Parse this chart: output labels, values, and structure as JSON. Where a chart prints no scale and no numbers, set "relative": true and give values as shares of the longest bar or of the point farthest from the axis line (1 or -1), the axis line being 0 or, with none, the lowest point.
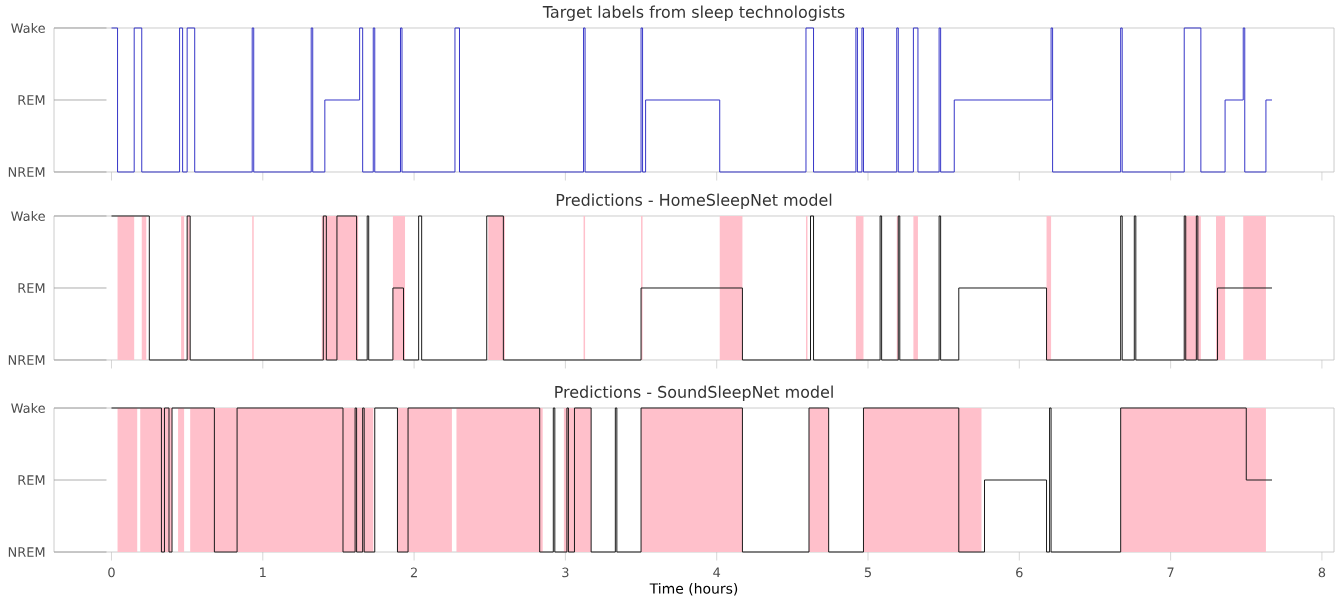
{
  "chart_data": [
    {
      "type": "step",
      "title": "Target labels from sleep technologists",
      "color": "#3535c8",
      "tick_labels": "y",
      "relative": true,
      "annotations": [
        "NREM",
        "REM",
        "Wake"
      ],
      "x": [
        0,
        0.04,
        0.15,
        0.2,
        0.45,
        0.47,
        0.5,
        0.55,
        0.93,
        0.94,
        1.32,
        1.33,
        1.41,
        1.64,
        1.66,
        1.73,
        1.74,
        1.91,
        1.92,
        2.27,
        2.3,
        3.12,
        3.13,
        3.5,
        3.51,
        3.53,
        4.02,
        4.59,
        4.64,
        4.92,
        4.93,
        4.96,
        4.97,
        5.19,
        5.2,
        5.3,
        5.33,
        5.47,
        5.48,
        5.57,
        6.21,
        6.22,
        6.67,
        6.68,
        7.09,
        7.2,
        7.36,
        7.48,
        7.49,
        7.63,
        7.67
      ],
      "values": [
        1,
        0,
        1,
        0,
        1,
        0,
        1,
        0,
        1,
        0,
        1,
        0,
        0.5,
        1,
        0,
        1,
        0,
        1,
        0,
        1,
        0,
        1,
        0,
        1,
        0,
        0.5,
        0,
        1,
        0,
        1,
        0,
        1,
        0,
        1,
        0,
        1,
        0,
        1,
        0,
        0.5,
        1,
        0,
        1,
        0,
        1,
        0,
        0.5,
        1,
        0,
        0.5,
        0.5
      ],
      "xlim": [
        -0.38,
        8.08
      ],
      "xticks": [
        {
          "value": 0,
          "label": null
        },
        {
          "value": 1,
          "label": null
        },
        {
          "value": 2,
          "label": null
        },
        {
          "value": 3,
          "label": null
        },
        {
          "value": 4,
          "label": null
        },
        {
          "value": 5,
          "label": null
        },
        {
          "value": 6,
          "label": null
        },
        {
          "value": 7,
          "label": null
        },
        {
          "value": 8,
          "label": null
        }
      ]
    },
    {
      "type": "step",
      "title": "Predictions - HomeSleepNet model",
      "color": "#1a1a1a",
      "tick_labels": "y",
      "relative": true,
      "annotations": [
        "NREM",
        "REM",
        "Wake"
      ],
      "x": [
        0,
        0.25,
        0.5,
        0.52,
        1.4,
        1.42,
        1.49,
        1.62,
        1.69,
        1.7,
        1.86,
        1.93,
        2.03,
        2.05,
        2.48,
        2.59,
        3.5,
        4.17,
        4.62,
        4.64,
        5.08,
        5.09,
        5.2,
        5.21,
        5.47,
        5.48,
        5.6,
        6.18,
        6.67,
        6.68,
        6.76,
        6.77,
        7.09,
        7.1,
        7.17,
        7.18,
        7.31,
        7.67
      ],
      "values": [
        1,
        0,
        1,
        0,
        1,
        0,
        1,
        0,
        1,
        0,
        0.5,
        0,
        1,
        0,
        1,
        0,
        0.5,
        0,
        1,
        0,
        1,
        0,
        1,
        0,
        1,
        0,
        0.5,
        0,
        1,
        0,
        1,
        0,
        1,
        0,
        1,
        0,
        0.5,
        0.5
      ],
      "bands": [
        {
          "axis": "x",
          "from": 0.04,
          "to": 0.15,
          "color": "#ffc0cb"
        },
        {
          "axis": "x",
          "from": 0.2,
          "to": 0.23,
          "color": "#ffc0cb"
        },
        {
          "axis": "x",
          "from": 0.46,
          "to": 0.48,
          "color": "#ffc0cb"
        },
        {
          "axis": "x",
          "from": 0.5,
          "to": 0.52,
          "color": "#ffc0cb"
        },
        {
          "axis": "x",
          "from": 0.93,
          "to": 0.94,
          "color": "#ffc0cb"
        },
        {
          "axis": "x",
          "from": 1.39,
          "to": 1.63,
          "color": "#ffc0cb"
        },
        {
          "axis": "x",
          "from": 1.86,
          "to": 1.94,
          "color": "#ffc0cb"
        },
        {
          "axis": "x",
          "from": 2.49,
          "to": 2.6,
          "color": "#ffc0cb"
        },
        {
          "axis": "x",
          "from": 3.12,
          "to": 3.13,
          "color": "#ffc0cb"
        },
        {
          "axis": "x",
          "from": 3.5,
          "to": 3.51,
          "color": "#ffc0cb"
        },
        {
          "axis": "x",
          "from": 4.02,
          "to": 4.17,
          "color": "#ffc0cb"
        },
        {
          "axis": "x",
          "from": 4.59,
          "to": 4.6,
          "color": "#ffc0cb"
        },
        {
          "axis": "x",
          "from": 4.92,
          "to": 4.97,
          "color": "#ffc0cb"
        },
        {
          "axis": "x",
          "from": 5.19,
          "to": 5.2,
          "color": "#ffc0cb"
        },
        {
          "axis": "x",
          "from": 5.3,
          "to": 5.33,
          "color": "#ffc0cb"
        },
        {
          "axis": "x",
          "from": 6.18,
          "to": 6.21,
          "color": "#ffc0cb"
        },
        {
          "axis": "x",
          "from": 7.09,
          "to": 7.2,
          "color": "#ffc0cb"
        },
        {
          "axis": "x",
          "from": 7.3,
          "to": 7.36,
          "color": "#ffc0cb"
        },
        {
          "axis": "x",
          "from": 7.48,
          "to": 7.63,
          "color": "#ffc0cb"
        }
      ],
      "xlim": [
        -0.38,
        8.08
      ],
      "xticks": [
        {
          "value": 0,
          "label": null
        },
        {
          "value": 1,
          "label": null
        },
        {
          "value": 2,
          "label": null
        },
        {
          "value": 3,
          "label": null
        },
        {
          "value": 4,
          "label": null
        },
        {
          "value": 5,
          "label": null
        },
        {
          "value": 6,
          "label": null
        },
        {
          "value": 7,
          "label": null
        },
        {
          "value": 8,
          "label": null
        }
      ]
    },
    {
      "type": "step",
      "title": "Predictions - SoundSleepNet model",
      "xlabel": "Time (hours)",
      "color": "#1a1a1a",
      "relative": true,
      "annotations": [
        "NREM",
        "REM",
        "Wake"
      ],
      "x": [
        0,
        0.33,
        0.35,
        0.38,
        0.4,
        0.68,
        0.83,
        1.53,
        1.61,
        1.62,
        1.66,
        1.67,
        1.74,
        1.89,
        1.96,
        2.83,
        2.92,
        2.93,
        3.01,
        3.02,
        3.06,
        3.17,
        3.33,
        3.34,
        3.5,
        4.17,
        4.61,
        4.74,
        4.97,
        5.6,
        5.77,
        6.18,
        6.2,
        6.21,
        6.67,
        7.5,
        7.67
      ],
      "values": [
        1,
        0,
        1,
        0,
        1,
        0,
        1,
        0,
        1,
        0,
        1,
        0,
        1,
        0,
        1,
        0,
        1,
        0,
        1,
        0,
        1,
        0,
        1,
        0,
        1,
        0,
        1,
        0,
        1,
        0,
        0.5,
        0,
        1,
        0,
        1,
        0.5,
        0.5
      ],
      "bands": [
        {
          "axis": "x",
          "from": 0.04,
          "to": 0.17,
          "color": "#ffc0cb"
        },
        {
          "axis": "x",
          "from": 0.19,
          "to": 0.4,
          "color": "#ffc0cb"
        },
        {
          "axis": "x",
          "from": 0.44,
          "to": 0.48,
          "color": "#ffc0cb"
        },
        {
          "axis": "x",
          "from": 0.52,
          "to": 1.73,
          "color": "#ffc0cb"
        },
        {
          "axis": "x",
          "from": 1.89,
          "to": 2.25,
          "color": "#ffc0cb"
        },
        {
          "axis": "x",
          "from": 2.28,
          "to": 2.85,
          "color": "#ffc0cb"
        },
        {
          "axis": "x",
          "from": 2.99,
          "to": 3.17,
          "color": "#ffc0cb"
        },
        {
          "axis": "x",
          "from": 3.5,
          "to": 4.17,
          "color": "#ffc0cb"
        },
        {
          "axis": "x",
          "from": 4.61,
          "to": 4.74,
          "color": "#ffc0cb"
        },
        {
          "axis": "x",
          "from": 4.97,
          "to": 5.75,
          "color": "#ffc0cb"
        },
        {
          "axis": "x",
          "from": 6.67,
          "to": 7.63,
          "color": "#ffc0cb"
        }
      ],
      "xlim": [
        -0.38,
        8.08
      ],
      "xticks": [
        0,
        1,
        2,
        3,
        4,
        5,
        6,
        7,
        8
      ]
    }
  ]
}
